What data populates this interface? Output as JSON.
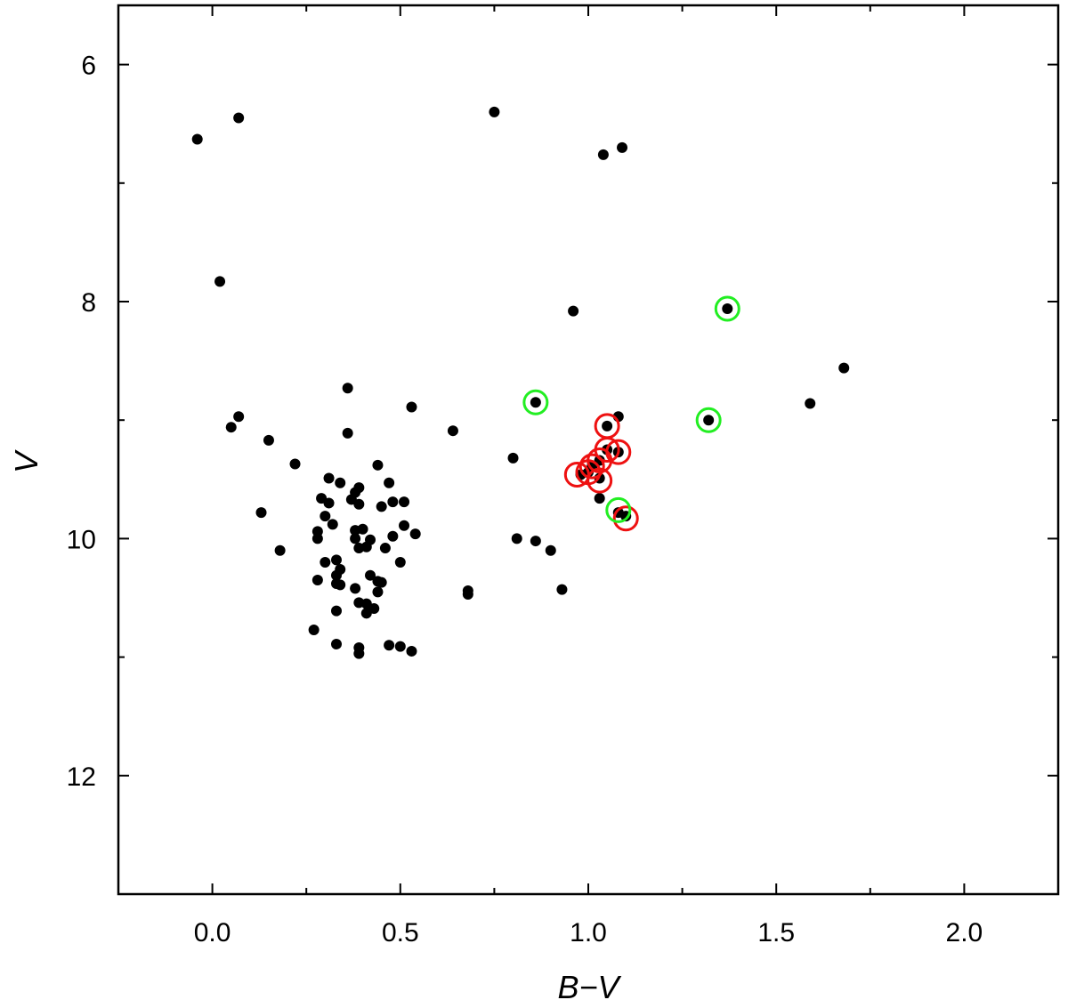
{
  "chart_data": {
    "type": "scatter",
    "title": "",
    "xlabel": "B−V",
    "ylabel": "V",
    "xlim": [
      -0.25,
      2.25
    ],
    "ylim": [
      13.0,
      5.5
    ],
    "y_inverted": true,
    "grid": false,
    "legend": "none",
    "x_ticks": [
      {
        "value": 0.0,
        "label": "0.0"
      },
      {
        "value": 0.5,
        "label": "0.5"
      },
      {
        "value": 1.0,
        "label": "1.0"
      },
      {
        "value": 1.5,
        "label": "1.5"
      },
      {
        "value": 2.0,
        "label": "2.0"
      }
    ],
    "x_minor_ticks": [
      0.25,
      0.75,
      1.25,
      1.75
    ],
    "y_ticks": [
      {
        "value": 6,
        "label": "6"
      },
      {
        "value": 8,
        "label": "8"
      },
      {
        "value": 10,
        "label": "10"
      },
      {
        "value": 12,
        "label": "12"
      }
    ],
    "y_minor_ticks": [
      7,
      9,
      11
    ],
    "colors": {
      "points": "#000000",
      "red_ring": "#ee1111",
      "green_ring": "#22ee22"
    },
    "series": [
      {
        "marker": "filled-circle",
        "color": "#000000",
        "points": [
          [
            -0.04,
            6.63
          ],
          [
            0.07,
            6.45
          ],
          [
            0.75,
            6.4
          ],
          [
            1.04,
            6.76
          ],
          [
            1.09,
            6.7
          ],
          [
            0.02,
            7.83
          ],
          [
            0.96,
            8.08
          ],
          [
            1.37,
            8.06
          ],
          [
            1.68,
            8.56
          ],
          [
            0.86,
            8.85
          ],
          [
            1.32,
            9.0
          ],
          [
            1.59,
            8.86
          ],
          [
            0.36,
            8.73
          ],
          [
            0.53,
            8.89
          ],
          [
            0.64,
            9.09
          ],
          [
            0.07,
            8.97
          ],
          [
            0.05,
            9.06
          ],
          [
            0.15,
            9.17
          ],
          [
            0.36,
            9.11
          ],
          [
            0.22,
            9.37
          ],
          [
            0.8,
            9.32
          ],
          [
            1.08,
            8.97
          ],
          [
            1.05,
            9.05
          ],
          [
            1.05,
            9.25
          ],
          [
            1.08,
            9.27
          ],
          [
            1.03,
            9.34
          ],
          [
            1.01,
            9.39
          ],
          [
            1.0,
            9.44
          ],
          [
            0.98,
            9.46
          ],
          [
            1.03,
            9.49
          ],
          [
            1.03,
            9.66
          ],
          [
            1.08,
            9.78
          ],
          [
            1.1,
            9.81
          ],
          [
            0.13,
            9.78
          ],
          [
            0.18,
            10.1
          ],
          [
            0.31,
            9.49
          ],
          [
            0.34,
            9.53
          ],
          [
            0.29,
            9.66
          ],
          [
            0.31,
            9.7
          ],
          [
            0.37,
            9.67
          ],
          [
            0.38,
            9.61
          ],
          [
            0.39,
            9.57
          ],
          [
            0.39,
            9.71
          ],
          [
            0.44,
            9.38
          ],
          [
            0.47,
            9.53
          ],
          [
            0.45,
            9.73
          ],
          [
            0.48,
            9.69
          ],
          [
            0.51,
            9.69
          ],
          [
            0.3,
            9.81
          ],
          [
            0.32,
            9.88
          ],
          [
            0.28,
            9.94
          ],
          [
            0.28,
            10.0
          ],
          [
            0.38,
            9.93
          ],
          [
            0.4,
            9.92
          ],
          [
            0.38,
            10.0
          ],
          [
            0.42,
            10.01
          ],
          [
            0.48,
            9.98
          ],
          [
            0.51,
            9.89
          ],
          [
            0.54,
            9.96
          ],
          [
            0.39,
            10.08
          ],
          [
            0.41,
            10.07
          ],
          [
            0.46,
            10.08
          ],
          [
            0.5,
            10.2
          ],
          [
            0.3,
            10.2
          ],
          [
            0.33,
            10.18
          ],
          [
            0.34,
            10.26
          ],
          [
            0.33,
            10.31
          ],
          [
            0.28,
            10.35
          ],
          [
            0.33,
            10.38
          ],
          [
            0.34,
            10.39
          ],
          [
            0.38,
            10.42
          ],
          [
            0.42,
            10.31
          ],
          [
            0.44,
            10.36
          ],
          [
            0.45,
            10.37
          ],
          [
            0.44,
            10.45
          ],
          [
            0.39,
            10.54
          ],
          [
            0.41,
            10.55
          ],
          [
            0.43,
            10.59
          ],
          [
            0.41,
            10.63
          ],
          [
            0.33,
            10.61
          ],
          [
            0.27,
            10.77
          ],
          [
            0.33,
            10.89
          ],
          [
            0.39,
            10.92
          ],
          [
            0.39,
            10.97
          ],
          [
            0.47,
            10.9
          ],
          [
            0.5,
            10.91
          ],
          [
            0.53,
            10.95
          ],
          [
            0.68,
            10.44
          ],
          [
            0.68,
            10.47
          ],
          [
            0.81,
            10.0
          ],
          [
            0.86,
            10.02
          ],
          [
            0.9,
            10.1
          ],
          [
            0.93,
            10.43
          ]
        ]
      },
      {
        "marker": "open-ring",
        "color": "#ee1111",
        "points": [
          [
            1.05,
            9.05
          ],
          [
            1.08,
            9.27
          ],
          [
            1.05,
            9.25
          ],
          [
            1.03,
            9.34
          ],
          [
            1.01,
            9.39
          ],
          [
            1.0,
            9.44
          ],
          [
            0.97,
            9.46
          ],
          [
            1.03,
            9.51
          ],
          [
            1.1,
            9.83
          ]
        ]
      },
      {
        "marker": "open-ring",
        "color": "#22ee22",
        "points": [
          [
            1.37,
            8.06
          ],
          [
            0.86,
            8.85
          ],
          [
            1.32,
            9.0
          ],
          [
            1.08,
            9.76
          ]
        ]
      }
    ]
  }
}
